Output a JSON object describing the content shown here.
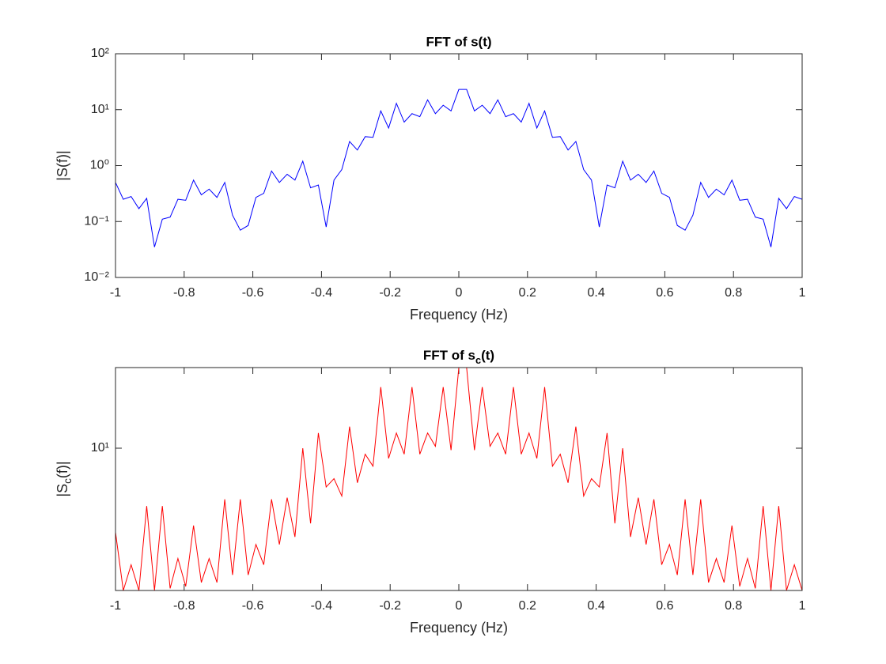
{
  "chart_data": [
    {
      "type": "line",
      "title": "FFT of s(t)",
      "x_label": "Frequency (Hz)",
      "y_label": "|S(f)|",
      "yscale": "log",
      "grid": false,
      "x": [
        -1,
        -0.9773,
        -0.9545,
        -0.9318,
        -0.9091,
        -0.8864,
        -0.8636,
        -0.8409,
        -0.8182,
        -0.7955,
        -0.7727,
        -0.75,
        -0.7273,
        -0.7045,
        -0.6818,
        -0.6591,
        -0.6364,
        -0.6136,
        -0.5909,
        -0.5682,
        -0.5455,
        -0.5227,
        -0.5,
        -0.4773,
        -0.4545,
        -0.4318,
        -0.4091,
        -0.3864,
        -0.3636,
        -0.3409,
        -0.3182,
        -0.2955,
        -0.2727,
        -0.25,
        -0.2273,
        -0.2045,
        -0.1818,
        -0.1591,
        -0.1364,
        -0.1136,
        -0.0909,
        -0.0682,
        -0.0455,
        -0.0227,
        0,
        0.0227,
        0.0455,
        0.0682,
        0.0909,
        0.1136,
        0.1364,
        0.1591,
        0.1818,
        0.2045,
        0.2273,
        0.25,
        0.2727,
        0.2955,
        0.3182,
        0.3409,
        0.3636,
        0.3864,
        0.4091,
        0.4318,
        0.4545,
        0.4773,
        0.5,
        0.5227,
        0.5455,
        0.5682,
        0.5909,
        0.6136,
        0.6364,
        0.6591,
        0.6818,
        0.7045,
        0.7273,
        0.75,
        0.7727,
        0.7955,
        0.8182,
        0.8409,
        0.8636,
        0.8864,
        0.9091,
        0.9318,
        0.9545,
        0.9773,
        1
      ],
      "series": [
        {
          "color": "#0000ff",
          "values": [
            0.5,
            0.25,
            0.28,
            0.17,
            0.26,
            0.035,
            0.11,
            0.12,
            0.25,
            0.24,
            0.55,
            0.3,
            0.38,
            0.27,
            0.5,
            0.13,
            0.07,
            0.085,
            0.27,
            0.32,
            0.8,
            0.5,
            0.7,
            0.55,
            1.2,
            0.4,
            0.45,
            0.08,
            0.55,
            0.85,
            2.7,
            1.9,
            3.3,
            3.2,
            9.5,
            4.7,
            13,
            6,
            8.5,
            7.5,
            15,
            8.5,
            12,
            9.5,
            23,
            23,
            9.5,
            12,
            8.5,
            15,
            7.5,
            8.5,
            6,
            13,
            4.7,
            9.5,
            3.2,
            3.3,
            1.9,
            2.7,
            0.85,
            0.55,
            0.08,
            0.45,
            0.4,
            1.2,
            0.55,
            0.7,
            0.5,
            0.8,
            0.32,
            0.27,
            0.085,
            0.07,
            0.13,
            0.5,
            0.27,
            0.38,
            0.3,
            0.55,
            0.24,
            0.25,
            0.12,
            0.11,
            0.035,
            0.26,
            0.17,
            0.28,
            0.25
          ]
        }
      ],
      "xlim": [
        -1,
        1
      ],
      "xticks": [
        -1,
        -0.8,
        -0.6,
        -0.4,
        -0.2,
        0,
        0.2,
        0.4,
        0.6,
        0.8,
        1
      ],
      "ylim": [
        0.01,
        100
      ],
      "yticks": [
        {
          "value": 0.01,
          "label": "10⁻²"
        },
        {
          "value": 0.1,
          "label": "10⁻¹"
        },
        {
          "value": 1,
          "label": "10⁰"
        },
        {
          "value": 10,
          "label": "10¹"
        },
        {
          "value": 100,
          "label": "10²"
        }
      ]
    },
    {
      "type": "line",
      "title": {
        "text": "FFT of s",
        "subscript": "c",
        "suffix": "(t)"
      },
      "x_label": "Frequency (Hz)",
      "y_label": {
        "text": "|S",
        "subscript": "c",
        "suffix": "(f)|"
      },
      "yscale": "log",
      "grid": false,
      "x": [
        -1,
        -0.9773,
        -0.9545,
        -0.9318,
        -0.9091,
        -0.8864,
        -0.8636,
        -0.8409,
        -0.8182,
        -0.7955,
        -0.7727,
        -0.75,
        -0.7273,
        -0.7045,
        -0.6818,
        -0.6591,
        -0.6364,
        -0.6136,
        -0.5909,
        -0.5682,
        -0.5455,
        -0.5227,
        -0.5,
        -0.4773,
        -0.4545,
        -0.4318,
        -0.4091,
        -0.3864,
        -0.3636,
        -0.3409,
        -0.3182,
        -0.2955,
        -0.2727,
        -0.25,
        -0.2273,
        -0.2045,
        -0.1818,
        -0.1591,
        -0.1364,
        -0.1136,
        -0.0909,
        -0.0682,
        -0.0455,
        -0.0227,
        0,
        0.0227,
        0.0455,
        0.0682,
        0.0909,
        0.1136,
        0.1364,
        0.1591,
        0.1818,
        0.2045,
        0.2273,
        0.25,
        0.2727,
        0.2955,
        0.3182,
        0.3409,
        0.3636,
        0.3864,
        0.4091,
        0.4318,
        0.4545,
        0.4773,
        0.5,
        0.5227,
        0.5455,
        0.5682,
        0.5909,
        0.6136,
        0.6364,
        0.6591,
        0.6818,
        0.7045,
        0.7273,
        0.75,
        0.7727,
        0.7955,
        0.8182,
        0.8409,
        0.8636,
        0.8864,
        0.9091,
        0.9318,
        0.9545,
        0.9773,
        1
      ],
      "series": [
        {
          "color": "#ff0000",
          "values": [
            4.2,
            2.3,
            3.0,
            2.3,
            5.5,
            2.3,
            5.5,
            2.35,
            3.2,
            2.4,
            4.5,
            2.5,
            3.2,
            2.5,
            5.9,
            2.7,
            5.9,
            2.7,
            3.7,
            3.0,
            5.9,
            3.7,
            6.0,
            4.0,
            10,
            4.6,
            11.7,
            6.7,
            7.3,
            6.1,
            12.5,
            7.0,
            9.4,
            8.3,
            18.8,
            9.0,
            11.7,
            9.4,
            18.8,
            9.4,
            11.7,
            10.2,
            18.8,
            9.8,
            23,
            23,
            9.8,
            18.8,
            10.2,
            11.7,
            9.4,
            18.8,
            9.4,
            11.7,
            9.0,
            18.8,
            8.3,
            9.4,
            7.0,
            12.5,
            6.1,
            7.3,
            6.7,
            11.7,
            4.6,
            10,
            4.0,
            6.0,
            3.7,
            5.9,
            3.0,
            3.7,
            2.7,
            5.9,
            2.7,
            5.9,
            2.5,
            3.2,
            2.5,
            4.5,
            2.4,
            3.2,
            2.35,
            5.5,
            2.3,
            5.5,
            2.3,
            3.0,
            2.3
          ]
        }
      ],
      "xlim": [
        -1,
        1
      ],
      "xticks": [
        -1,
        -0.8,
        -0.6,
        -0.4,
        -0.2,
        0,
        0.2,
        0.4,
        0.6,
        0.8,
        1
      ],
      "ylim": [
        2.3,
        23
      ],
      "yticks": [
        {
          "value": 10,
          "label": "10¹"
        }
      ]
    }
  ]
}
